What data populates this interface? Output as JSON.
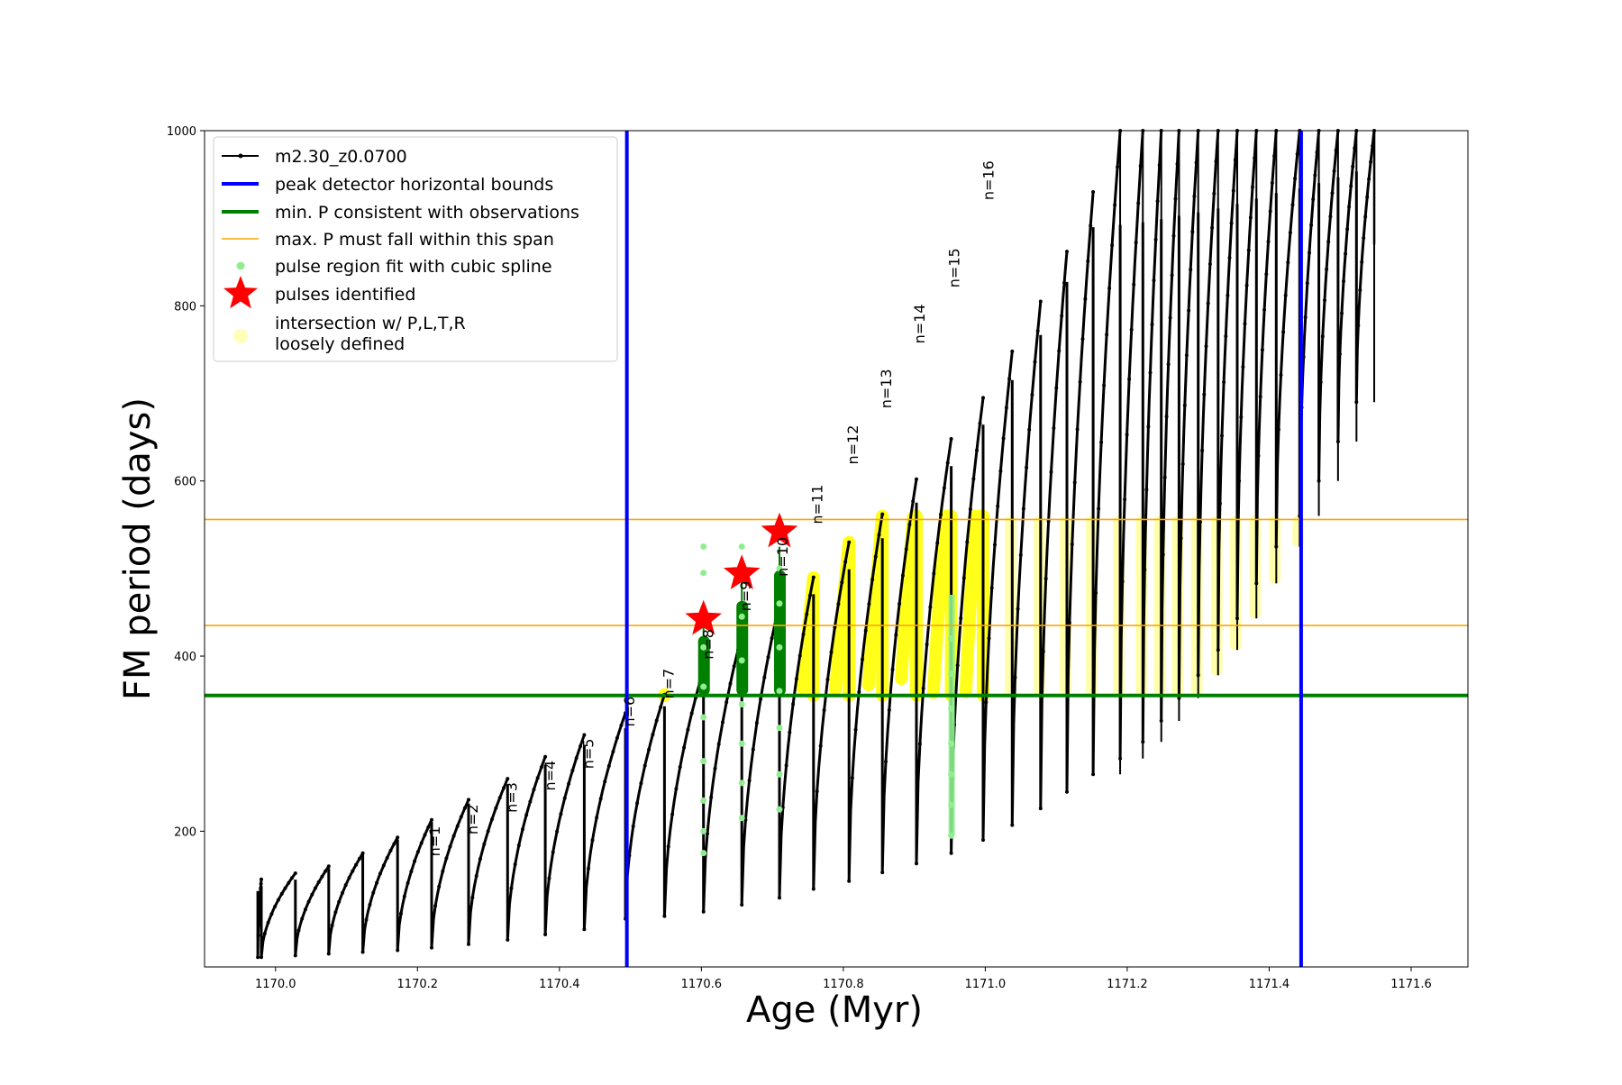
{
  "chart_data": {
    "type": "line",
    "title": "",
    "xlabel": "Age (Myr)",
    "ylabel": "FM period (days)",
    "xlim": [
      1169.9,
      1171.68
    ],
    "ylim": [
      45,
      1000
    ],
    "x_ticks": [
      1170.0,
      1170.2,
      1170.4,
      1170.6,
      1170.8,
      1171.0,
      1171.2,
      1171.4,
      1171.6
    ],
    "x_tick_labels": [
      "1170.0",
      "1170.2",
      "1170.4",
      "1170.6",
      "1170.8",
      "1171.0",
      "1171.2",
      "1171.4",
      "1171.6"
    ],
    "y_ticks": [
      200,
      400,
      600,
      800,
      1000
    ],
    "y_tick_labels": [
      "200",
      "400",
      "600",
      "800",
      "1000"
    ],
    "grid": false,
    "legend_position": "top-left",
    "legend": [
      {
        "label": "m2.30_z0.0700",
        "style": "line-dot",
        "color": "#000000"
      },
      {
        "label": "peak detector horizontal bounds",
        "style": "line",
        "color": "#0000ff"
      },
      {
        "label": "min. P consistent with observations",
        "style": "line",
        "color": "#008000"
      },
      {
        "label": "max. P must fall within this span",
        "style": "thin-line",
        "color": "#ffa500"
      },
      {
        "label": "pulse region fit with cubic spline",
        "style": "dot",
        "color": "#90ee90"
      },
      {
        "label": "pulses identified",
        "style": "star",
        "color": "#ff0000"
      },
      {
        "label": "intersection w/ P,L,T,R\nloosely defined",
        "style": "dot",
        "color": "#ffff80"
      }
    ],
    "vertical_bounds": [
      1170.495,
      1171.445
    ],
    "min_period_line": 355,
    "max_period_span": [
      435,
      556
    ],
    "cycles": [
      {
        "x0": 1169.975,
        "x1": 1169.98,
        "min": 56,
        "max": 145
      },
      {
        "x0": 1169.98,
        "x1": 1170.028,
        "min": 56,
        "max": 152
      },
      {
        "x0": 1170.028,
        "x1": 1170.075,
        "min": 58,
        "max": 160
      },
      {
        "x0": 1170.075,
        "x1": 1170.123,
        "min": 60,
        "max": 175
      },
      {
        "x0": 1170.123,
        "x1": 1170.172,
        "min": 62,
        "max": 193
      },
      {
        "x0": 1170.172,
        "x1": 1170.22,
        "min": 64,
        "max": 213
      },
      {
        "x0": 1170.22,
        "x1": 1170.272,
        "min": 67,
        "max": 236
      },
      {
        "x0": 1170.272,
        "x1": 1170.327,
        "min": 71,
        "max": 260
      },
      {
        "x0": 1170.327,
        "x1": 1170.38,
        "min": 76,
        "max": 285
      },
      {
        "x0": 1170.38,
        "x1": 1170.435,
        "min": 82,
        "max": 310
      },
      {
        "x0": 1170.435,
        "x1": 1170.493,
        "min": 88,
        "max": 335
      },
      {
        "x0": 1170.493,
        "x1": 1170.548,
        "min": 100,
        "max": 356
      },
      {
        "x0": 1170.548,
        "x1": 1170.603,
        "min": 103,
        "max": 385
      },
      {
        "x0": 1170.603,
        "x1": 1170.657,
        "min": 108,
        "max": 425
      },
      {
        "x0": 1170.657,
        "x1": 1170.71,
        "min": 116,
        "max": 460
      },
      {
        "x0": 1170.71,
        "x1": 1170.758,
        "min": 124,
        "max": 490
      },
      {
        "x0": 1170.758,
        "x1": 1170.808,
        "min": 134,
        "max": 530
      },
      {
        "x0": 1170.808,
        "x1": 1170.855,
        "min": 143,
        "max": 562
      },
      {
        "x0": 1170.855,
        "x1": 1170.903,
        "min": 153,
        "max": 602
      },
      {
        "x0": 1170.903,
        "x1": 1170.952,
        "min": 163,
        "max": 648
      },
      {
        "x0": 1170.952,
        "x1": 1170.997,
        "min": 175,
        "max": 695
      },
      {
        "x0": 1170.997,
        "x1": 1171.038,
        "min": 190,
        "max": 748
      },
      {
        "x0": 1171.038,
        "x1": 1171.078,
        "min": 207,
        "max": 805
      },
      {
        "x0": 1171.078,
        "x1": 1171.115,
        "min": 226,
        "max": 862
      },
      {
        "x0": 1171.115,
        "x1": 1171.152,
        "min": 245,
        "max": 930
      },
      {
        "x0": 1171.152,
        "x1": 1171.19,
        "min": 265,
        "max": 1000
      },
      {
        "x0": 1171.19,
        "x1": 1171.222,
        "min": 283,
        "max": 1000
      },
      {
        "x0": 1171.222,
        "x1": 1171.248,
        "min": 302,
        "max": 1000
      },
      {
        "x0": 1171.248,
        "x1": 1171.273,
        "min": 326,
        "max": 1000
      },
      {
        "x0": 1171.273,
        "x1": 1171.3,
        "min": 352,
        "max": 1000
      },
      {
        "x0": 1171.3,
        "x1": 1171.328,
        "min": 378,
        "max": 1000
      },
      {
        "x0": 1171.328,
        "x1": 1171.355,
        "min": 407,
        "max": 1000
      },
      {
        "x0": 1171.355,
        "x1": 1171.382,
        "min": 443,
        "max": 1000
      },
      {
        "x0": 1171.382,
        "x1": 1171.41,
        "min": 483,
        "max": 1000
      },
      {
        "x0": 1171.41,
        "x1": 1171.443,
        "min": 525,
        "max": 1000
      },
      {
        "x0": 1171.443,
        "x1": 1171.47,
        "min": 560,
        "max": 1000
      },
      {
        "x0": 1171.47,
        "x1": 1171.497,
        "min": 600,
        "max": 1000
      },
      {
        "x0": 1171.497,
        "x1": 1171.523,
        "min": 645,
        "max": 1000
      },
      {
        "x0": 1171.523,
        "x1": 1171.548,
        "min": 690,
        "max": 1000
      }
    ],
    "mode_labels": [
      {
        "text": "n=1",
        "x": 1170.224,
        "y": 210
      },
      {
        "text": "n=2",
        "x": 1170.277,
        "y": 235
      },
      {
        "text": "n=3",
        "x": 1170.332,
        "y": 260
      },
      {
        "text": "n=4",
        "x": 1170.386,
        "y": 285
      },
      {
        "text": "n=5",
        "x": 1170.44,
        "y": 310
      },
      {
        "text": "n=6",
        "x": 1170.498,
        "y": 358
      },
      {
        "text": "n=7",
        "x": 1170.553,
        "y": 390
      },
      {
        "text": "n=8",
        "x": 1170.609,
        "y": 435
      },
      {
        "text": "n=9",
        "x": 1170.662,
        "y": 490
      },
      {
        "text": "n=10",
        "x": 1170.714,
        "y": 540
      },
      {
        "text": "n=11",
        "x": 1170.763,
        "y": 600
      },
      {
        "text": "n=12",
        "x": 1170.813,
        "y": 668
      },
      {
        "text": "n=13",
        "x": 1170.86,
        "y": 732
      },
      {
        "text": "n=14",
        "x": 1170.907,
        "y": 806
      },
      {
        "text": "n=15",
        "x": 1170.956,
        "y": 870
      },
      {
        "text": "n=16",
        "x": 1171.004,
        "y": 970
      }
    ],
    "pulses_identified": [
      {
        "x": 1170.603,
        "y": 442
      },
      {
        "x": 1170.657,
        "y": 494
      },
      {
        "x": 1170.71,
        "y": 542
      }
    ],
    "spline_pulse_regions": [
      {
        "x": 1170.603,
        "y": [
          175,
          200,
          235,
          280,
          330,
          365,
          410,
          455,
          495,
          525
        ]
      },
      {
        "x": 1170.657,
        "y": [
          215,
          255,
          300,
          345,
          395,
          445,
          495,
          525
        ]
      },
      {
        "x": 1170.71,
        "y": [
          225,
          265,
          318,
          360,
          410,
          460,
          500
        ]
      },
      {
        "x": 1170.952,
        "y": [
          195,
          230,
          265,
          300,
          340,
          380,
          420
        ]
      }
    ]
  }
}
